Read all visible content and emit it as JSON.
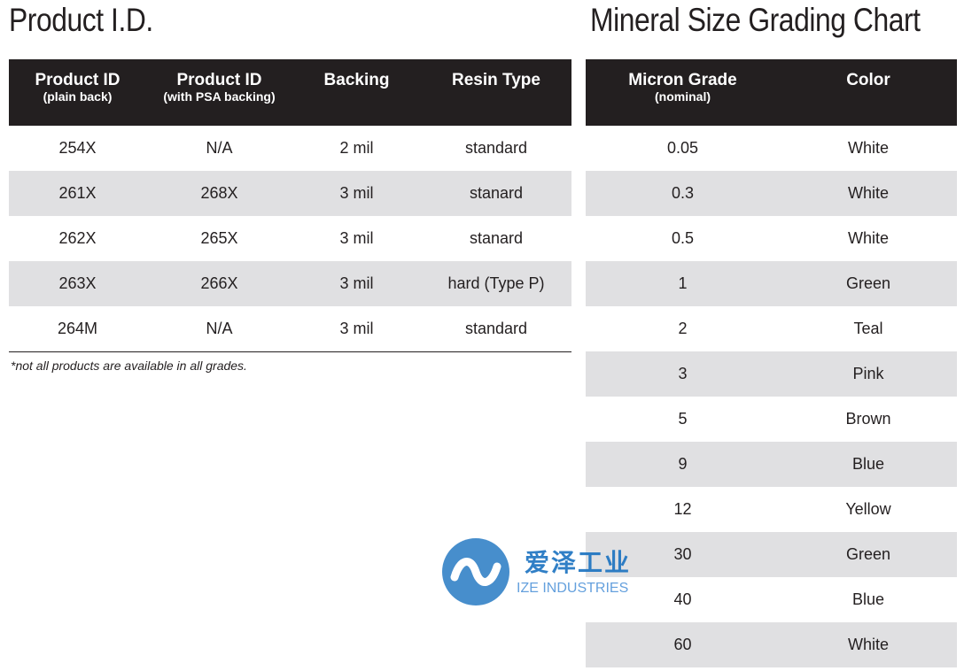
{
  "product_section": {
    "title": "Product I.D.",
    "columns": [
      {
        "main": "Product ID",
        "sub": "(plain back)"
      },
      {
        "main": "Product ID",
        "sub": "(with PSA backing)"
      },
      {
        "main": "Backing",
        "sub": ""
      },
      {
        "main": "Resin Type",
        "sub": ""
      }
    ],
    "rows": [
      [
        "254X",
        "N/A",
        "2 mil",
        "standard"
      ],
      [
        "261X",
        "268X",
        "3 mil",
        "stanard"
      ],
      [
        "262X",
        "265X",
        "3 mil",
        "stanard"
      ],
      [
        "263X",
        "266X",
        "3 mil",
        "hard (Type P)"
      ],
      [
        "264M",
        "N/A",
        "3 mil",
        "standard"
      ]
    ],
    "footnote": "*not all products are available in all grades."
  },
  "mineral_section": {
    "title": "Mineral Size Grading Chart",
    "columns": [
      {
        "main": "Micron Grade",
        "sub": "(nominal)"
      },
      {
        "main": "Color",
        "sub": ""
      }
    ],
    "rows": [
      [
        "0.05",
        "White"
      ],
      [
        "0.3",
        "White"
      ],
      [
        "0.5",
        "White"
      ],
      [
        "1",
        "Green"
      ],
      [
        "2",
        "Teal"
      ],
      [
        "3",
        "Pink"
      ],
      [
        "5",
        "Brown"
      ],
      [
        "9",
        "Blue"
      ],
      [
        "12",
        "Yellow"
      ],
      [
        "30",
        "Green"
      ],
      [
        "40",
        "Blue"
      ],
      [
        "60",
        "White"
      ]
    ]
  },
  "watermark": {
    "cn": "爱泽工业",
    "en": "IZE INDUSTRIES",
    "color": "#1a72c0"
  },
  "colors": {
    "header_bg": "#231f20",
    "alt_row_bg": "#e0e0e2"
  }
}
